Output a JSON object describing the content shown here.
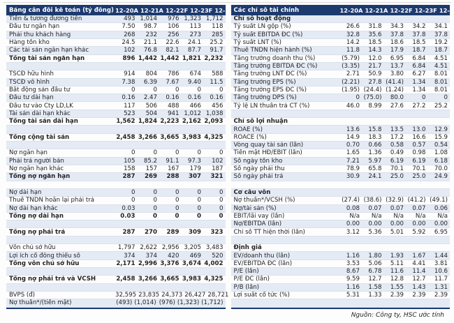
{
  "colors": {
    "header_bg": "#1c3a6e",
    "row_tint": "#e4ebf5",
    "hairline": "#dbe1ea",
    "text": "#222222"
  },
  "tables": [
    {
      "id": "balance-sheet",
      "title": "Bảng cân đối kế toán (tỷ đồng)",
      "columns": [
        "12-20A",
        "12-21A",
        "12-22F",
        "12-23F",
        "12-24F"
      ],
      "rows": [
        {
          "label": "Tiền & tương đương tiền",
          "values": [
            "493",
            "1,014",
            "976",
            "1,323",
            "1,712"
          ],
          "style": "normal"
        },
        {
          "label": "Đầu tư ngắn hạn",
          "values": [
            "7.50",
            "98.7",
            "106",
            "113",
            "118"
          ],
          "style": "normal"
        },
        {
          "label": "Phải thu khách hàng",
          "values": [
            "268",
            "232",
            "256",
            "273",
            "285"
          ],
          "style": "normal"
        },
        {
          "label": "Hàng tồn kho",
          "values": [
            "24.5",
            "21.1",
            "22.6",
            "24.1",
            "25.2"
          ],
          "style": "normal"
        },
        {
          "label": "Các tài sản ngắn hạn khác",
          "values": [
            "102",
            "76.8",
            "82.1",
            "87.7",
            "91.7"
          ],
          "style": "normal"
        },
        {
          "label": "Tổng tài sản ngắn hạn",
          "values": [
            "896",
            "1,442",
            "1,442",
            "1,821",
            "2,232"
          ],
          "style": "bold"
        },
        {
          "label": "",
          "values": [
            "",
            "",
            "",
            "",
            ""
          ],
          "style": "blank"
        },
        {
          "label": "TSCĐ hữu hình",
          "values": [
            "914",
            "804",
            "786",
            "674",
            "588"
          ],
          "style": "normal"
        },
        {
          "label": "TSCĐ vô hình",
          "values": [
            "7.38",
            "6.39",
            "7.67",
            "9.40",
            "11.5"
          ],
          "style": "normal"
        },
        {
          "label": "Bất động sản đầu tư",
          "values": [
            "0",
            "0",
            "0",
            "0",
            "0"
          ],
          "style": "normal"
        },
        {
          "label": "Đầu tư dài hạn",
          "values": [
            "0.16",
            "2.47",
            "0.16",
            "0.16",
            "0.16"
          ],
          "style": "normal"
        },
        {
          "label": "Đầu tư vào Cty LD,LK",
          "values": [
            "117",
            "506",
            "488",
            "466",
            "456"
          ],
          "style": "normal"
        },
        {
          "label": "Tài sản dài hạn khác",
          "values": [
            "523",
            "504",
            "941",
            "1,012",
            "1,038"
          ],
          "style": "normal"
        },
        {
          "label": "Tổng tài sản dài hạn",
          "values": [
            "1,562",
            "1,824",
            "2,223",
            "2,162",
            "2,093"
          ],
          "style": "bold"
        },
        {
          "label": "",
          "values": [
            "",
            "",
            "",
            "",
            ""
          ],
          "style": "blank"
        },
        {
          "label": "Tổng cộng tài sản",
          "values": [
            "2,458",
            "3,266",
            "3,665",
            "3,983",
            "4,325"
          ],
          "style": "bold"
        },
        {
          "label": "",
          "values": [
            "",
            "",
            "",
            "",
            ""
          ],
          "style": "blank"
        },
        {
          "label": "Nợ ngắn hạn",
          "values": [
            "0",
            "0",
            "0",
            "0",
            "0"
          ],
          "style": "normal"
        },
        {
          "label": "Phải trả người bán",
          "values": [
            "105",
            "85.2",
            "91.1",
            "97.3",
            "102"
          ],
          "style": "normal"
        },
        {
          "label": "Nợ ngắn hạn khác",
          "values": [
            "158",
            "157",
            "167",
            "179",
            "187"
          ],
          "style": "normal"
        },
        {
          "label": "Tổng nợ ngắn hạn",
          "values": [
            "287",
            "269",
            "288",
            "307",
            "321"
          ],
          "style": "bold"
        },
        {
          "label": "",
          "values": [
            "",
            "",
            "",
            "",
            ""
          ],
          "style": "blank"
        },
        {
          "label": "Nợ dài hạn",
          "values": [
            "0",
            "0",
            "0",
            "0",
            "0"
          ],
          "style": "normal"
        },
        {
          "label": "Thuế TNDN hoãn lại phải trả",
          "values": [
            "0",
            "0",
            "0",
            "0",
            "0"
          ],
          "style": "normal"
        },
        {
          "label": "Nợ dài hạn khác",
          "values": [
            "0.03",
            "0",
            "0",
            "0",
            "0"
          ],
          "style": "normal"
        },
        {
          "label": "Tổng nợ dài hạn",
          "values": [
            "0.03",
            "0",
            "0",
            "0",
            "0"
          ],
          "style": "bold"
        },
        {
          "label": "",
          "values": [
            "",
            "",
            "",
            "",
            ""
          ],
          "style": "blank"
        },
        {
          "label": "Tổng nợ phải trả",
          "values": [
            "287",
            "270",
            "289",
            "309",
            "323"
          ],
          "style": "bold"
        },
        {
          "label": "",
          "values": [
            "",
            "",
            "",
            "",
            ""
          ],
          "style": "blank"
        },
        {
          "label": "Vốn chủ sở hữu",
          "values": [
            "1,797",
            "2,622",
            "2,956",
            "3,205",
            "3,483"
          ],
          "style": "normal"
        },
        {
          "label": "Lợi ích cổ đông thiểu số",
          "values": [
            "374",
            "374",
            "420",
            "469",
            "520"
          ],
          "style": "normal"
        },
        {
          "label": "Tổng vốn chủ sở hữu",
          "values": [
            "2,171",
            "2,996",
            "3,376",
            "3,674",
            "4,002"
          ],
          "style": "bold"
        },
        {
          "label": "",
          "values": [
            "",
            "",
            "",
            "",
            ""
          ],
          "style": "blank"
        },
        {
          "label": "Tổng nợ phải trả và VCSH",
          "values": [
            "2,458",
            "3,266",
            "3,665",
            "3,983",
            "4,325"
          ],
          "style": "bold"
        },
        {
          "label": "",
          "values": [
            "",
            "",
            "",
            "",
            ""
          ],
          "style": "blank"
        },
        {
          "label": "BVPS (đ)",
          "values": [
            "32,595",
            "23,835",
            "24,373",
            "26,427",
            "28,721"
          ],
          "style": "normal"
        },
        {
          "label": "Nợ thuần*/(tiền mặt)",
          "values": [
            "(493)",
            "(1,014)",
            "(976)",
            "(1,323)",
            "(1,712)"
          ],
          "style": "normal"
        }
      ]
    },
    {
      "id": "financial-ratios",
      "title": "Các chỉ số tài chính",
      "columns": [
        "12-20A",
        "12-21A",
        "12-22F",
        "12-23F",
        "12-24F"
      ],
      "rows": [
        {
          "label": "Chỉ số hoạt động",
          "values": [
            "",
            "",
            "",
            "",
            ""
          ],
          "style": "section"
        },
        {
          "label": "Tỷ suất LN gộp (%)",
          "values": [
            "26.6",
            "31.8",
            "34.3",
            "34.2",
            "34.1"
          ],
          "style": "normal"
        },
        {
          "label": "Tỷ suất EBITDA ĐC (%)",
          "values": [
            "32.8",
            "35.6",
            "37.8",
            "37.8",
            "37.8"
          ],
          "style": "normal"
        },
        {
          "label": "Tỷ suất LNT (%)",
          "values": [
            "14.2",
            "18.5",
            "18.6",
            "18.5",
            "19.2"
          ],
          "style": "normal"
        },
        {
          "label": "Thuế TNDN hiện hành (%)",
          "values": [
            "11.8",
            "14.3",
            "17.9",
            "18.7",
            "18.7"
          ],
          "style": "normal"
        },
        {
          "label": "Tăng trưởng doanh thu (%)",
          "values": [
            "(5.79)",
            "12.0",
            "6.95",
            "6.84",
            "4.51"
          ],
          "style": "normal"
        },
        {
          "label": "Tăng trưởng EBITDA ĐC (%)",
          "values": [
            "(3.35)",
            "21.7",
            "13.7",
            "6.84",
            "4.51"
          ],
          "style": "normal"
        },
        {
          "label": "Tăng trưởng LNT ĐC (%)",
          "values": [
            "2.71",
            "50.9",
            "3.80",
            "6.27",
            "8.01"
          ],
          "style": "normal"
        },
        {
          "label": "Tăng trưởng EPS (%)",
          "values": [
            "(2.21)",
            "27.8",
            "(41.4)",
            "1.34",
            "8.01"
          ],
          "style": "normal"
        },
        {
          "label": "Tăng trưởng EPS ĐC (%)",
          "values": [
            "(1.95)",
            "(24.4)",
            "(1.24)",
            "1.34",
            "8.01"
          ],
          "style": "normal"
        },
        {
          "label": "Tăng trưởng DPS (%)",
          "values": [
            "0",
            "(75.0)",
            "80.0",
            "0",
            "0"
          ],
          "style": "normal"
        },
        {
          "label": "Tỷ lệ LN thuần trả CT (%)",
          "values": [
            "46.0",
            "8.99",
            "27.6",
            "27.2",
            "25.2"
          ],
          "style": "normal"
        },
        {
          "label": "",
          "values": [
            "",
            "",
            "",
            "",
            ""
          ],
          "style": "blank"
        },
        {
          "label": "Chỉ số lợi nhuận",
          "values": [
            "",
            "",
            "",
            "",
            ""
          ],
          "style": "section"
        },
        {
          "label": "ROAE (%)",
          "values": [
            "13.6",
            "15.8",
            "13.5",
            "13.0",
            "12.9"
          ],
          "style": "normal"
        },
        {
          "label": "ROACE (%)",
          "values": [
            "14.9",
            "18.3",
            "17.2",
            "16.6",
            "15.9"
          ],
          "style": "normal"
        },
        {
          "label": "Vòng quay tài sản (lần)",
          "values": [
            "0.70",
            "0.66",
            "0.58",
            "0.57",
            "0.54"
          ],
          "style": "normal"
        },
        {
          "label": "Tiền mặt HĐ/EBIT (lần)",
          "values": [
            "1.65",
            "1.36",
            "0.49",
            "0.98",
            "1.08"
          ],
          "style": "normal"
        },
        {
          "label": "Số ngày tồn kho",
          "values": [
            "7.21",
            "5.97",
            "6.19",
            "6.19",
            "6.18"
          ],
          "style": "normal"
        },
        {
          "label": "Số ngày phải thu",
          "values": [
            "78.9",
            "65.8",
            "70.1",
            "70.1",
            "70.0"
          ],
          "style": "normal"
        },
        {
          "label": "Số ngày phải trả",
          "values": [
            "30.9",
            "24.1",
            "25.0",
            "25.0",
            "24.9"
          ],
          "style": "normal"
        },
        {
          "label": "",
          "values": [
            "",
            "",
            "",
            "",
            ""
          ],
          "style": "blank"
        },
        {
          "label": "Cơ cấu vốn",
          "values": [
            "",
            "",
            "",
            "",
            ""
          ],
          "style": "section"
        },
        {
          "label": "Nợ thuần*/VCSH (%)",
          "values": [
            "(27.4)",
            "(38.6)",
            "(32.9)",
            "(41.2)",
            "(49.1)"
          ],
          "style": "normal"
        },
        {
          "label": "Nợ/tài sản (%)",
          "values": [
            "0.08",
            "0.07",
            "0.07",
            "0.07",
            "0.06"
          ],
          "style": "normal"
        },
        {
          "label": "EBIT/lãi vay (lần)",
          "values": [
            "N/a",
            "N/a",
            "N/a",
            "N/a",
            "N/a"
          ],
          "style": "normal"
        },
        {
          "label": "Nợ/EBITDA (lần)",
          "values": [
            "0.00",
            "0.00",
            "0.00",
            "0.00",
            "0.00"
          ],
          "style": "normal"
        },
        {
          "label": "Chỉ số TT hiện thời (lần)",
          "values": [
            "3.12",
            "5.36",
            "5.01",
            "5.92",
            "6.95"
          ],
          "style": "normal"
        },
        {
          "label": "",
          "values": [
            "",
            "",
            "",
            "",
            ""
          ],
          "style": "blank"
        },
        {
          "label": "Định giá",
          "values": [
            "",
            "",
            "",
            "",
            ""
          ],
          "style": "section"
        },
        {
          "label": "EV/doanh thu (lần)",
          "values": [
            "1.16",
            "1.80",
            "1.93",
            "1.67",
            "1.44"
          ],
          "style": "normal"
        },
        {
          "label": "EV/EBITDA ĐC (lần)",
          "values": [
            "3.53",
            "5.06",
            "5.11",
            "4.41",
            "3.81"
          ],
          "style": "normal"
        },
        {
          "label": "P/E (lần)",
          "values": [
            "8.67",
            "6.78",
            "11.6",
            "11.4",
            "10.6"
          ],
          "style": "normal"
        },
        {
          "label": "P/E ĐC (lần)",
          "values": [
            "9.59",
            "12.7",
            "12.8",
            "12.7",
            "11.7"
          ],
          "style": "normal"
        },
        {
          "label": "P/B (lần)",
          "values": [
            "1.16",
            "1.58",
            "1.55",
            "1.43",
            "1.31"
          ],
          "style": "normal"
        },
        {
          "label": "Lợi suất cổ tức (%)",
          "values": [
            "5.31",
            "1.33",
            "2.39",
            "2.39",
            "2.39"
          ],
          "style": "normal"
        },
        {
          "label": "",
          "values": [
            "",
            "",
            "",
            "",
            ""
          ],
          "style": "blank"
        }
      ]
    }
  ],
  "footer": {
    "source": "Nguồn: Công ty, HSC ước tính"
  }
}
